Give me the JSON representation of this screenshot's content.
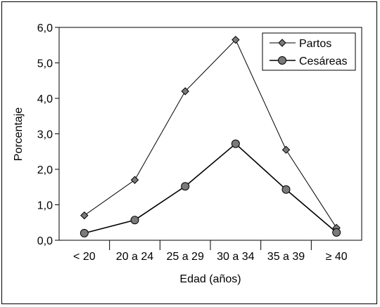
{
  "chart_data": {
    "type": "line",
    "title": "",
    "xlabel": "Edad (años)",
    "ylabel": "Porcentaje",
    "categories": [
      "< 20",
      "20 a 24",
      "25 a 29",
      "30 a 34",
      "35 a 39",
      "≥ 40"
    ],
    "yticks": [
      "0,0",
      "1,0",
      "2,0",
      "3,0",
      "4,0",
      "5,0",
      "6,0"
    ],
    "ylim": [
      0,
      6
    ],
    "grid": false,
    "legend_position": "top-right",
    "series": [
      {
        "name": "Partos",
        "marker": "diamond",
        "values": [
          0.7,
          1.7,
          4.2,
          5.65,
          2.55,
          0.35
        ]
      },
      {
        "name": "Cesáreas",
        "marker": "circle",
        "values": [
          0.2,
          0.57,
          1.52,
          2.72,
          1.43,
          0.22
        ]
      }
    ],
    "colors": {
      "line": "#000000",
      "marker_fill": "#7a7a7a",
      "background": "#ffffff"
    }
  }
}
